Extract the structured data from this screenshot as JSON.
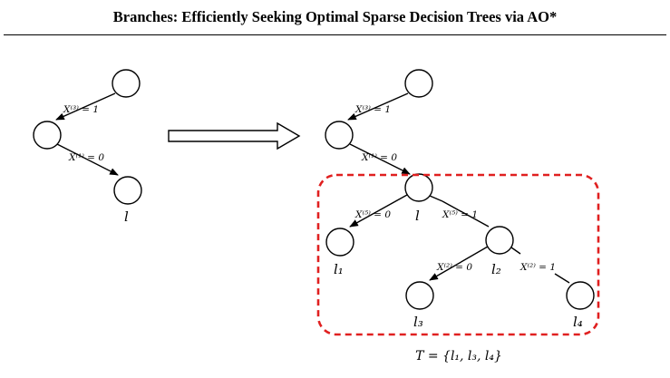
{
  "header": {
    "title": "Branches: Efficiently Seeking Optimal Sparse Decision Trees via AO*"
  },
  "left_tree": {
    "edge_1": "X⁽³⁾ = 1",
    "edge_2": "X⁽¹⁾ = 0",
    "leaf": "l"
  },
  "right_tree": {
    "edge_1": "X⁽³⁾ = 1",
    "edge_2": "X⁽¹⁾ = 0",
    "node_l": "l",
    "edge_l_left": "X⁽⁵⁾ = 0",
    "edge_l_right": "X⁽⁵⁾ = 1",
    "leaf_l1": "l₁",
    "node_l2": "l₂",
    "edge_l2_left": "X⁽²⁾ = 0",
    "edge_l2_right": "X⁽²⁾ = 1",
    "leaf_l3": "l₃",
    "leaf_l4": "l₄"
  },
  "caption": "T = {l₁, l₃, l₄}",
  "colors": {
    "highlight_box": "#e02020",
    "stroke": "#000000"
  },
  "icons": {
    "transition_arrow": "hollow-right-arrow"
  }
}
